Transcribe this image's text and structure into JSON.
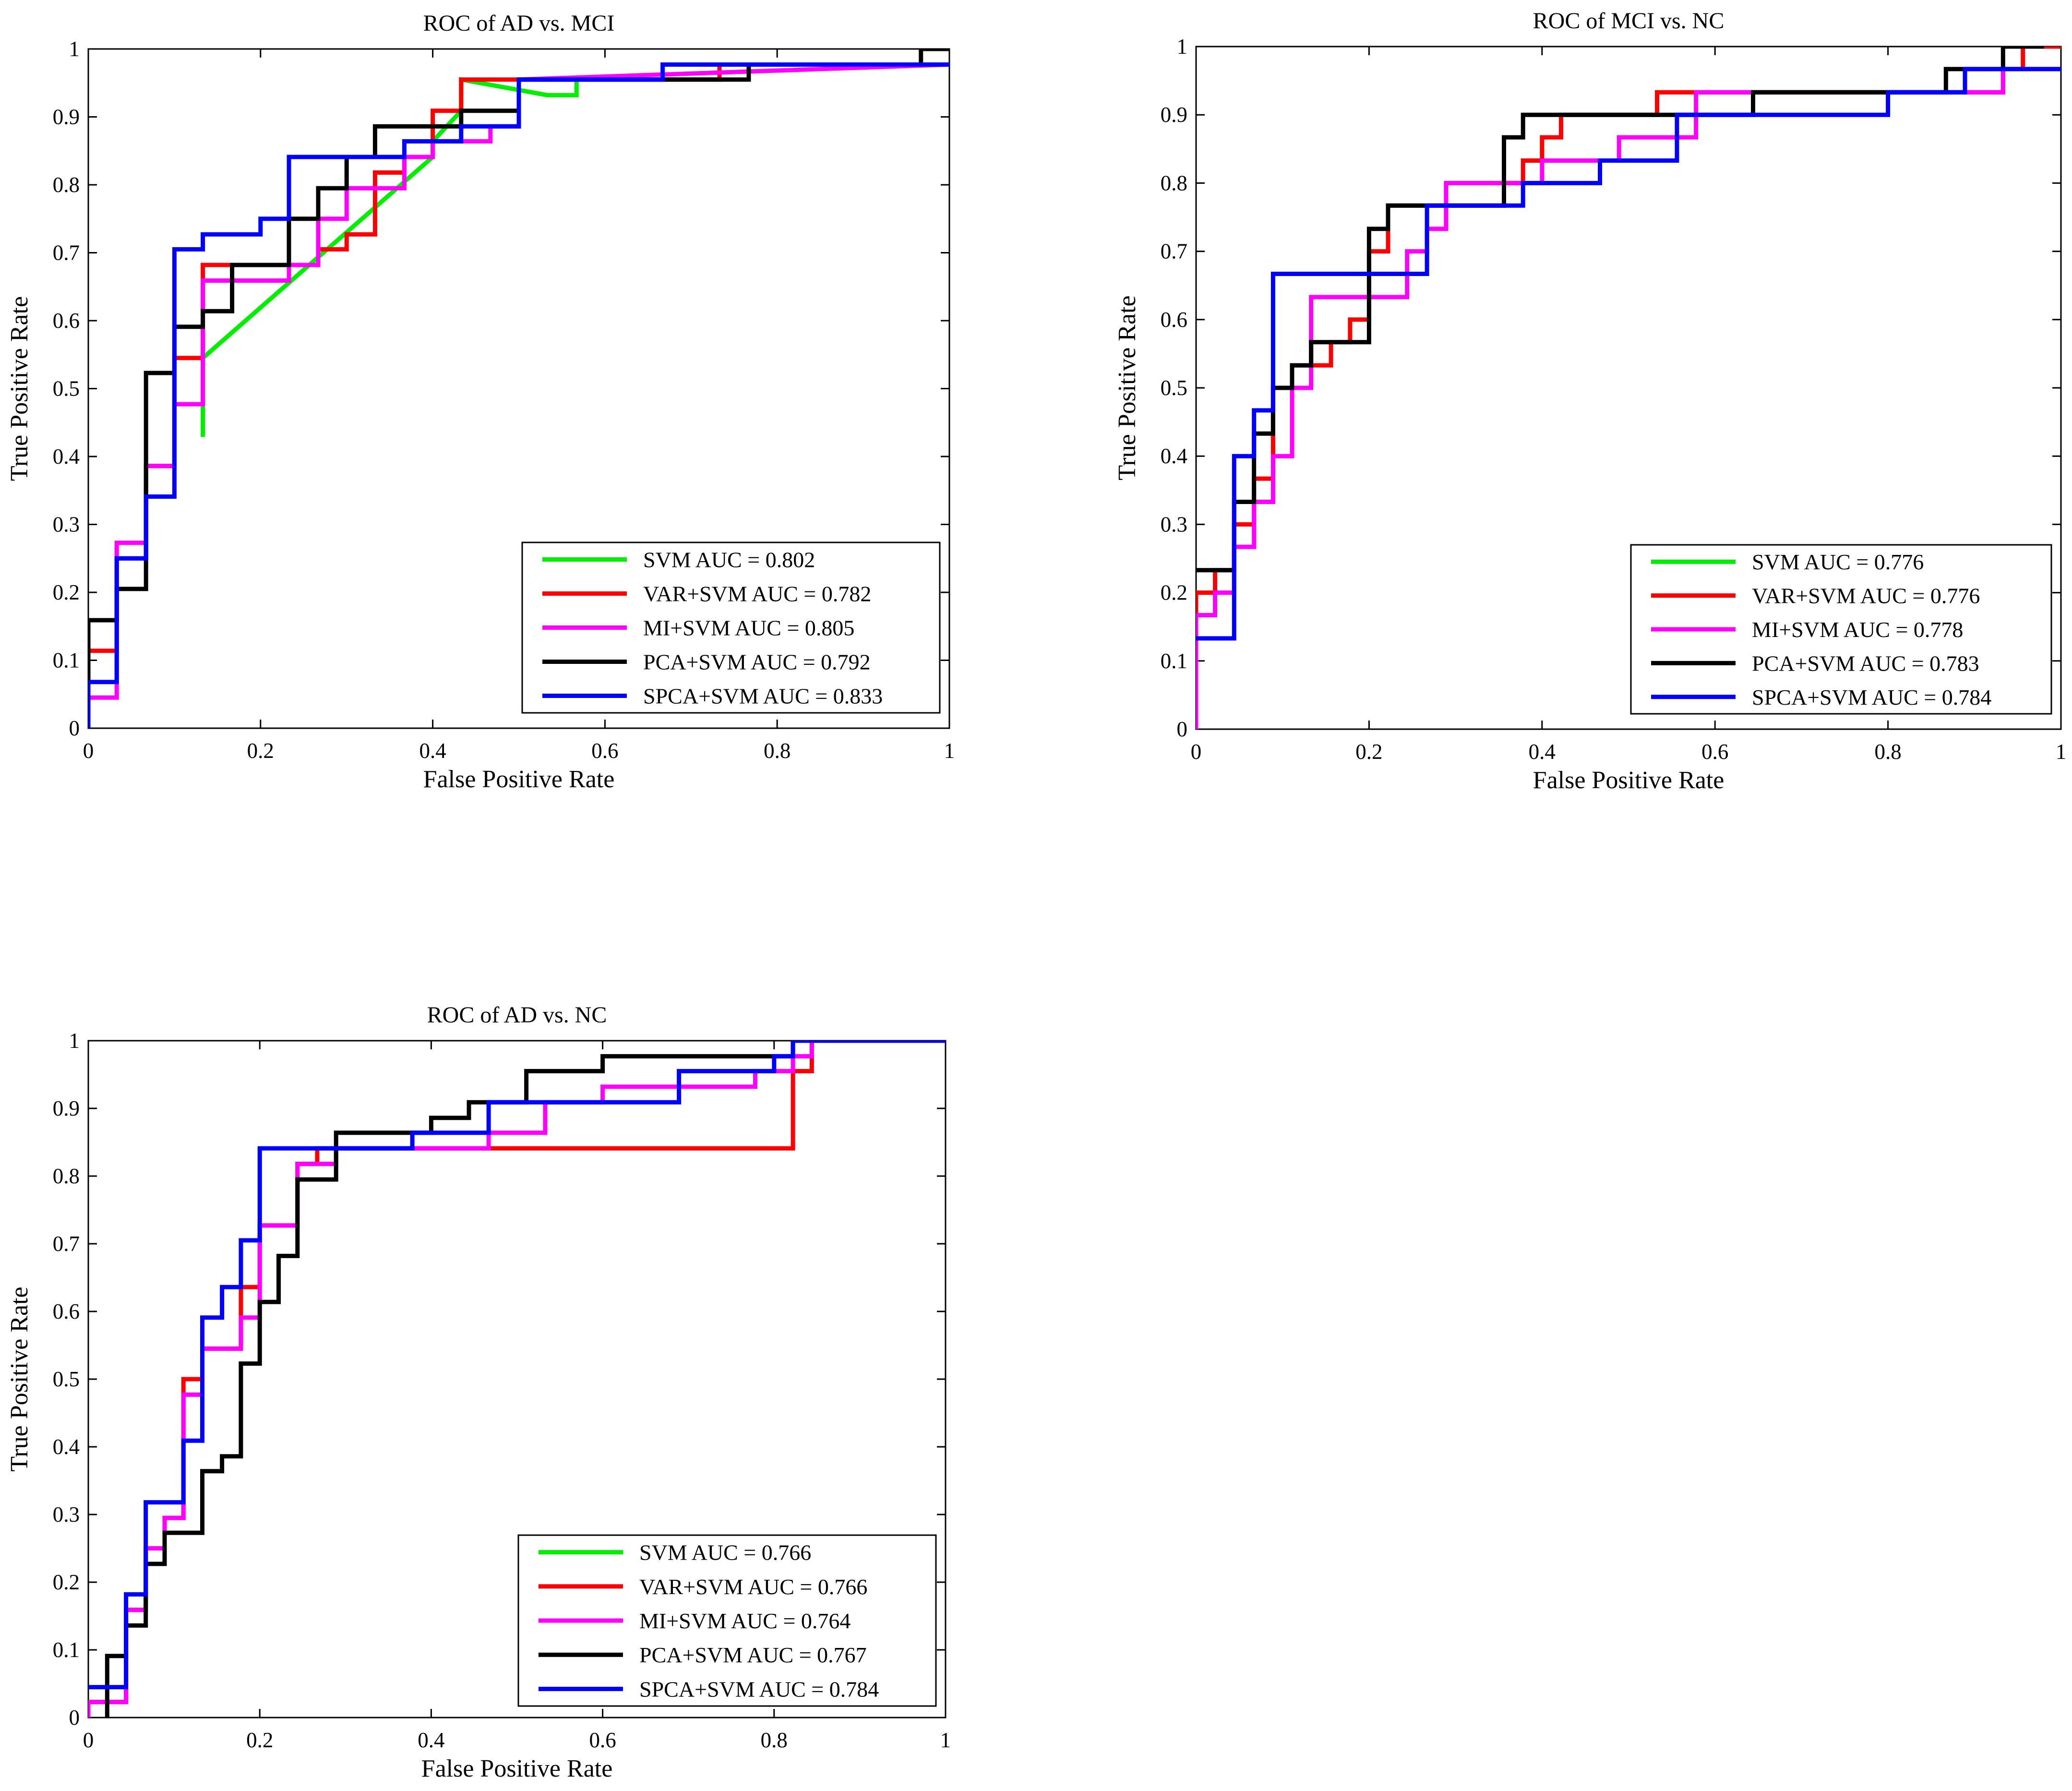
{
  "chart_data": [
    {
      "type": "line",
      "title": "ROC of AD vs. MCI",
      "xlabel": "False Positive Rate",
      "ylabel": "True Positive Rate",
      "xlim": [
        0,
        1
      ],
      "ylim": [
        0,
        1
      ],
      "xticks": [
        "0",
        "0.2",
        "0.4",
        "0.6",
        "0.8",
        "1"
      ],
      "yticks": [
        "0",
        "0.1",
        "0.2",
        "0.3",
        "0.4",
        "0.5",
        "0.6",
        "0.7",
        "0.8",
        "0.9",
        "1"
      ],
      "legend_position": "bottom-right",
      "series": [
        {
          "name": "SVM",
          "label": "SVM AUC = 0.802",
          "color": "#00ee00",
          "x": [
            0.133,
            0.133,
            0.4,
            0.4,
            0.433,
            0.433,
            0.533,
            0.533,
            0.567,
            0.567,
            0.733,
            0.733
          ],
          "y": [
            0.432,
            0.545,
            0.841,
            0.864,
            0.909,
            0.955,
            0.932,
            0.932,
            0.932,
            0.955,
            0.955,
            0.977
          ]
        },
        {
          "name": "VAR+SVM",
          "label": "VAR+SVM AUC = 0.782",
          "color": "#ff0000",
          "x": [
            0,
            0,
            0.033,
            0.033,
            0.067,
            0.067,
            0.1,
            0.1,
            0.133,
            0.133,
            0.167,
            0.167,
            0.267,
            0.267,
            0.3,
            0.3,
            0.333,
            0.333,
            0.367,
            0.367,
            0.4,
            0.4,
            0.433,
            0.433,
            0.5,
            0.5,
            0.733,
            0.733,
            0.967,
            0.967,
            1
          ],
          "y": [
            0,
            0.114,
            0.114,
            0.25,
            0.25,
            0.386,
            0.386,
            0.545,
            0.545,
            0.682,
            0.682,
            0.682,
            0.682,
            0.705,
            0.705,
            0.727,
            0.727,
            0.818,
            0.818,
            0.841,
            0.841,
            0.909,
            0.909,
            0.955,
            0.955,
            0.955,
            0.955,
            0.977,
            0.977,
            0.977,
            0.977
          ]
        },
        {
          "name": "MI+SVM",
          "label": "MI+SVM AUC = 0.805",
          "color": "#ff00ff",
          "x": [
            0,
            0,
            0.033,
            0.033,
            0.067,
            0.067,
            0.1,
            0.1,
            0.133,
            0.133,
            0.233,
            0.233,
            0.267,
            0.267,
            0.3,
            0.3,
            0.333,
            0.333,
            0.367,
            0.367,
            0.4,
            0.4,
            0.467,
            0.467,
            0.5,
            0.5,
            1
          ],
          "y": [
            0,
            0.045,
            0.045,
            0.273,
            0.273,
            0.386,
            0.386,
            0.477,
            0.477,
            0.659,
            0.659,
            0.682,
            0.682,
            0.75,
            0.75,
            0.795,
            0.795,
            0.795,
            0.795,
            0.841,
            0.841,
            0.864,
            0.864,
            0.886,
            0.886,
            0.955,
            0.977
          ]
        },
        {
          "name": "PCA+SVM",
          "label": "PCA+SVM AUC = 0.792",
          "color": "#000000",
          "x": [
            0,
            0,
            0.033,
            0.033,
            0.067,
            0.067,
            0.1,
            0.1,
            0.133,
            0.133,
            0.167,
            0.167,
            0.233,
            0.233,
            0.267,
            0.267,
            0.3,
            0.3,
            0.333,
            0.333,
            0.433,
            0.433,
            0.5,
            0.5,
            0.767,
            0.767,
            0.967,
            0.967,
            1
          ],
          "y": [
            0,
            0.159,
            0.159,
            0.205,
            0.205,
            0.523,
            0.523,
            0.591,
            0.591,
            0.614,
            0.614,
            0.682,
            0.682,
            0.75,
            0.75,
            0.795,
            0.795,
            0.841,
            0.841,
            0.886,
            0.886,
            0.909,
            0.909,
            0.955,
            0.955,
            0.977,
            0.977,
            1.0,
            1.0
          ]
        },
        {
          "name": "SPCA+SVM",
          "label": "SPCA+SVM AUC = 0.833",
          "color": "#0000ff",
          "x": [
            0,
            0,
            0.033,
            0.033,
            0.067,
            0.067,
            0.1,
            0.1,
            0.133,
            0.133,
            0.2,
            0.2,
            0.233,
            0.233,
            0.367,
            0.367,
            0.4,
            0.4,
            0.433,
            0.433,
            0.5,
            0.5,
            0.667,
            0.667,
            1
          ],
          "y": [
            0,
            0.068,
            0.068,
            0.25,
            0.25,
            0.341,
            0.341,
            0.705,
            0.705,
            0.727,
            0.727,
            0.75,
            0.75,
            0.841,
            0.841,
            0.864,
            0.864,
            0.864,
            0.864,
            0.886,
            0.886,
            0.955,
            0.955,
            0.977,
            0.977
          ]
        }
      ]
    },
    {
      "type": "line",
      "title": "ROC of MCI vs. NC",
      "xlabel": "False Positive Rate",
      "ylabel": "True Positive Rate",
      "xlim": [
        0,
        1
      ],
      "ylim": [
        0,
        1
      ],
      "xticks": [
        "0",
        "0.2",
        "0.4",
        "0.6",
        "0.8",
        "1"
      ],
      "yticks": [
        "0",
        "0.1",
        "0.2",
        "0.3",
        "0.4",
        "0.5",
        "0.6",
        "0.7",
        "0.8",
        "0.9",
        "1"
      ],
      "legend_position": "bottom-right",
      "series": [
        {
          "name": "SVM",
          "label": "SVM AUC = 0.776",
          "color": "#00ee00",
          "x": [],
          "y": []
        },
        {
          "name": "VAR+SVM",
          "label": "VAR+SVM AUC = 0.776",
          "color": "#ff0000",
          "x": [
            0,
            0,
            0.022,
            0.022,
            0.044,
            0.044,
            0.067,
            0.067,
            0.089,
            0.089,
            0.111,
            0.111,
            0.133,
            0.133,
            0.156,
            0.156,
            0.178,
            0.178,
            0.2,
            0.2,
            0.222,
            0.222,
            0.356,
            0.356,
            0.378,
            0.378,
            0.4,
            0.4,
            0.422,
            0.422,
            0.533,
            0.533,
            0.578,
            0.578,
            0.933,
            0.933,
            0.956,
            0.956,
            1
          ],
          "y": [
            0,
            0.2,
            0.2,
            0.233,
            0.233,
            0.3,
            0.3,
            0.367,
            0.367,
            0.5,
            0.5,
            0.533,
            0.533,
            0.533,
            0.533,
            0.567,
            0.567,
            0.6,
            0.6,
            0.7,
            0.7,
            0.767,
            0.767,
            0.8,
            0.8,
            0.833,
            0.833,
            0.867,
            0.867,
            0.9,
            0.9,
            0.933,
            0.933,
            0.933,
            0.933,
            0.967,
            0.967,
            1.0,
            1.0
          ]
        },
        {
          "name": "MI+SVM",
          "label": "MI+SVM AUC = 0.778",
          "color": "#ff00ff",
          "x": [
            0,
            0,
            0.022,
            0.022,
            0.044,
            0.044,
            0.067,
            0.067,
            0.089,
            0.089,
            0.111,
            0.111,
            0.133,
            0.133,
            0.244,
            0.244,
            0.267,
            0.267,
            0.289,
            0.289,
            0.356,
            0.356,
            0.4,
            0.4,
            0.444,
            0.444,
            0.489,
            0.489,
            0.578,
            0.578,
            0.644,
            0.644,
            0.933,
            0.933,
            1
          ],
          "y": [
            0,
            0.167,
            0.167,
            0.2,
            0.2,
            0.267,
            0.267,
            0.333,
            0.333,
            0.4,
            0.4,
            0.5,
            0.5,
            0.633,
            0.633,
            0.7,
            0.7,
            0.733,
            0.733,
            0.8,
            0.8,
            0.8,
            0.8,
            0.833,
            0.833,
            0.833,
            0.833,
            0.867,
            0.867,
            0.933,
            0.933,
            0.933,
            0.933,
            0.967,
            0.967
          ]
        },
        {
          "name": "PCA+SVM",
          "label": "PCA+SVM AUC = 0.783",
          "color": "#000000",
          "x": [
            0,
            0.044,
            0.044,
            0.067,
            0.067,
            0.089,
            0.089,
            0.111,
            0.111,
            0.133,
            0.133,
            0.2,
            0.2,
            0.222,
            0.222,
            0.356,
            0.356,
            0.378,
            0.378,
            0.644,
            0.644,
            0.867,
            0.867,
            0.933,
            0.933,
            0.978
          ],
          "y": [
            0.233,
            0.233,
            0.333,
            0.333,
            0.433,
            0.433,
            0.5,
            0.5,
            0.533,
            0.533,
            0.567,
            0.567,
            0.733,
            0.733,
            0.767,
            0.767,
            0.867,
            0.867,
            0.9,
            0.9,
            0.933,
            0.933,
            0.967,
            0.967,
            1.0,
            1.0
          ]
        },
        {
          "name": "SPCA+SVM",
          "label": "SPCA+SVM AUC = 0.784",
          "color": "#0000ff",
          "x": [
            0,
            0.044,
            0.044,
            0.067,
            0.067,
            0.089,
            0.089,
            0.267,
            0.267,
            0.378,
            0.378,
            0.467,
            0.467,
            0.556,
            0.556,
            0.8,
            0.8,
            0.889,
            0.889,
            1
          ],
          "y": [
            0.133,
            0.133,
            0.4,
            0.4,
            0.467,
            0.467,
            0.667,
            0.667,
            0.767,
            0.767,
            0.8,
            0.8,
            0.833,
            0.833,
            0.9,
            0.9,
            0.933,
            0.933,
            0.967,
            0.967
          ]
        }
      ]
    },
    {
      "type": "line",
      "title": "ROC of AD vs. NC",
      "xlabel": "False Positive Rate",
      "ylabel": "True Positive Rate",
      "xlim": [
        0,
        1
      ],
      "ylim": [
        0,
        1
      ],
      "xticks": [
        "0",
        "0.2",
        "0.4",
        "0.6",
        "0.8",
        "1"
      ],
      "yticks": [
        "0",
        "0.1",
        "0.2",
        "0.3",
        "0.4",
        "0.5",
        "0.6",
        "0.7",
        "0.8",
        "0.9",
        "1"
      ],
      "legend_position": "bottom-right",
      "series": [
        {
          "name": "SVM",
          "label": "SVM AUC = 0.766",
          "color": "#00ee00",
          "x": [],
          "y": []
        },
        {
          "name": "VAR+SVM",
          "label": "VAR+SVM AUC = 0.766",
          "color": "#ff0000",
          "x": [
            0,
            0,
            0.044,
            0.044,
            0.067,
            0.067,
            0.089,
            0.089,
            0.111,
            0.111,
            0.133,
            0.133,
            0.178,
            0.178,
            0.2,
            0.2,
            0.244,
            0.244,
            0.267,
            0.267,
            0.822,
            0.822,
            0.844,
            0.844,
            1
          ],
          "y": [
            0,
            0.023,
            0.023,
            0.159,
            0.159,
            0.25,
            0.25,
            0.295,
            0.295,
            0.5,
            0.5,
            0.545,
            0.545,
            0.636,
            0.636,
            0.727,
            0.727,
            0.818,
            0.818,
            0.841,
            0.841,
            0.955,
            0.955,
            1.0,
            1.0
          ]
        },
        {
          "name": "MI+SVM",
          "label": "MI+SVM AUC = 0.764",
          "color": "#ff00ff",
          "x": [
            0,
            0,
            0.044,
            0.044,
            0.067,
            0.067,
            0.089,
            0.089,
            0.111,
            0.111,
            0.133,
            0.133,
            0.178,
            0.178,
            0.2,
            0.2,
            0.244,
            0.244,
            0.267,
            0.267,
            0.289,
            0.289,
            0.467,
            0.467,
            0.533,
            0.533,
            0.6,
            0.6,
            0.778,
            0.778,
            0.822,
            0.822,
            0.844,
            0.844,
            1
          ],
          "y": [
            0,
            0.023,
            0.023,
            0.159,
            0.159,
            0.25,
            0.25,
            0.295,
            0.295,
            0.477,
            0.477,
            0.545,
            0.545,
            0.591,
            0.591,
            0.727,
            0.727,
            0.818,
            0.818,
            0.818,
            0.818,
            0.841,
            0.841,
            0.864,
            0.864,
            0.909,
            0.909,
            0.932,
            0.932,
            0.955,
            0.955,
            0.977,
            0.977,
            1.0,
            1.0
          ]
        },
        {
          "name": "PCA+SVM",
          "label": "PCA+SVM AUC = 0.767",
          "color": "#000000",
          "x": [
            0.022,
            0.022,
            0.044,
            0.044,
            0.067,
            0.067,
            0.089,
            0.089,
            0.133,
            0.133,
            0.156,
            0.156,
            0.178,
            0.178,
            0.2,
            0.2,
            0.222,
            0.222,
            0.244,
            0.244,
            0.289,
            0.289,
            0.4,
            0.4,
            0.444,
            0.444,
            0.511,
            0.511,
            0.6,
            0.6,
            0.822,
            0.822
          ],
          "y": [
            0,
            0.091,
            0.091,
            0.136,
            0.136,
            0.227,
            0.227,
            0.273,
            0.273,
            0.364,
            0.364,
            0.386,
            0.386,
            0.523,
            0.523,
            0.614,
            0.614,
            0.682,
            0.682,
            0.795,
            0.795,
            0.864,
            0.864,
            0.886,
            0.886,
            0.909,
            0.909,
            0.955,
            0.955,
            0.977,
            0.977,
            1.0
          ]
        },
        {
          "name": "SPCA+SVM",
          "label": "SPCA+SVM AUC = 0.784",
          "color": "#0000ff",
          "x": [
            0,
            0.044,
            0.044,
            0.067,
            0.067,
            0.111,
            0.111,
            0.133,
            0.133,
            0.156,
            0.156,
            0.178,
            0.178,
            0.2,
            0.2,
            0.378,
            0.378,
            0.467,
            0.467,
            0.689,
            0.689,
            0.8,
            0.8,
            0.822,
            0.822,
            1
          ],
          "y": [
            0.045,
            0.045,
            0.182,
            0.182,
            0.318,
            0.318,
            0.409,
            0.409,
            0.591,
            0.591,
            0.636,
            0.636,
            0.705,
            0.705,
            0.841,
            0.841,
            0.864,
            0.864,
            0.909,
            0.909,
            0.955,
            0.955,
            0.977,
            0.977,
            1.0,
            1.0
          ]
        }
      ]
    }
  ]
}
